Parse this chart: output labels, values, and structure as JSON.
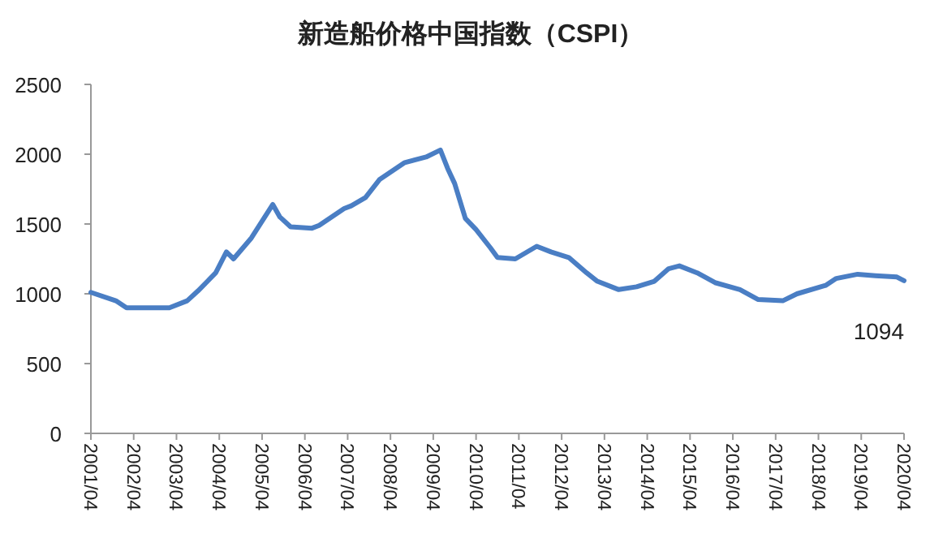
{
  "chart_data": {
    "type": "line",
    "title": "新造船价格中国指数（CSPI）",
    "x": [
      "2001-04",
      "2001-11",
      "2002-02",
      "2002-08",
      "2003-02",
      "2003-07",
      "2003-10",
      "2004-03",
      "2004-06",
      "2004-08",
      "2005-01",
      "2005-07",
      "2005-09",
      "2005-12",
      "2006-06",
      "2006-08",
      "2007-03",
      "2007-05",
      "2007-09",
      "2008-01",
      "2008-08",
      "2009-02",
      "2009-06",
      "2009-08",
      "2009-10",
      "2010-01",
      "2010-04",
      "2010-08",
      "2010-10",
      "2011-03",
      "2011-09",
      "2012-01",
      "2012-06",
      "2012-11",
      "2013-02",
      "2013-08",
      "2014-01",
      "2014-06",
      "2014-10",
      "2015-01",
      "2015-06",
      "2015-11",
      "2016-06",
      "2016-11",
      "2017-06",
      "2017-10",
      "2018-06",
      "2018-09",
      "2019-03",
      "2019-08",
      "2020-02",
      "2020-04"
    ],
    "series": [
      {
        "color": "#4a7ec4",
        "values": [
          1010,
          950,
          900,
          900,
          900,
          950,
          1020,
          1150,
          1300,
          1250,
          1400,
          1640,
          1550,
          1480,
          1470,
          1490,
          1610,
          1630,
          1690,
          1820,
          1940,
          1980,
          2030,
          1900,
          1790,
          1540,
          1460,
          1330,
          1260,
          1250,
          1340,
          1300,
          1260,
          1150,
          1090,
          1030,
          1050,
          1090,
          1180,
          1200,
          1150,
          1080,
          1030,
          960,
          950,
          1000,
          1060,
          1110,
          1140,
          1130,
          1120,
          1094
        ]
      }
    ],
    "ylim": [
      0,
      2500
    ],
    "yticks": [
      0,
      500,
      1000,
      1500,
      2000,
      2500
    ],
    "xlim": [
      "2001-04",
      "2020-04"
    ],
    "xticks": [
      {
        "value": "2001-04",
        "label": "2001/04"
      },
      {
        "value": "2002-04",
        "label": "2002/04"
      },
      {
        "value": "2003-04",
        "label": "2003/04"
      },
      {
        "value": "2004-04",
        "label": "2004/04"
      },
      {
        "value": "2005-04",
        "label": "2005/04"
      },
      {
        "value": "2006-04",
        "label": "2006/04"
      },
      {
        "value": "2007-04",
        "label": "2007/04"
      },
      {
        "value": "2008-04",
        "label": "2008/04"
      },
      {
        "value": "2009-04",
        "label": "2009/04"
      },
      {
        "value": "2010-04",
        "label": "2010/04"
      },
      {
        "value": "2011-04",
        "label": "2011/04"
      },
      {
        "value": "2012-04",
        "label": "2012/04"
      },
      {
        "value": "2013-04",
        "label": "2013/04"
      },
      {
        "value": "2014-04",
        "label": "2014/04"
      },
      {
        "value": "2015-04",
        "label": "2015/04"
      },
      {
        "value": "2016-04",
        "label": "2016/04"
      },
      {
        "value": "2017-04",
        "label": "2017/04"
      },
      {
        "value": "2018-04",
        "label": "2018/04"
      },
      {
        "value": "2019-04",
        "label": "2019/04"
      },
      {
        "value": "2020-04",
        "label": "2020/04"
      }
    ],
    "annotations": [
      {
        "text": "1094",
        "x": "2020-04",
        "y": 1094
      }
    ],
    "grid": false,
    "marker": "none",
    "line_style": "solid"
  }
}
